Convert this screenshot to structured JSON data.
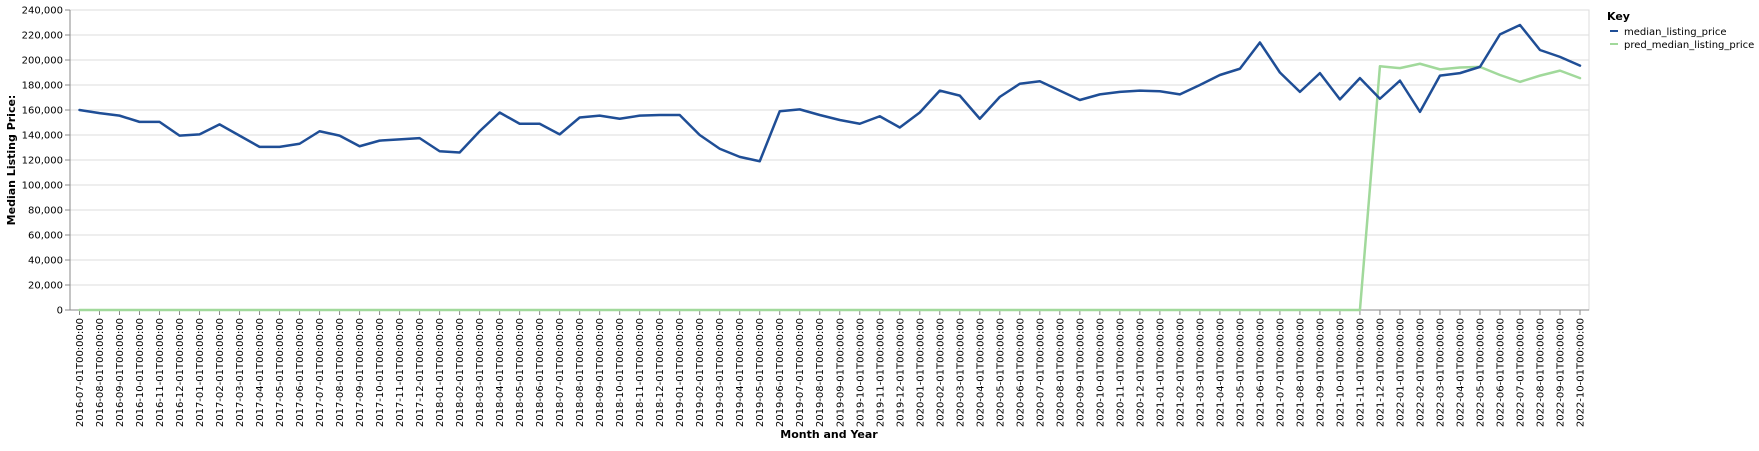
{
  "chart_data": {
    "type": "line",
    "xlabel": "Month and Year",
    "ylabel": "Median Listing Price:",
    "ylim": [
      0,
      240000
    ],
    "yticks": [
      0,
      20000,
      40000,
      60000,
      80000,
      100000,
      120000,
      140000,
      160000,
      180000,
      200000,
      220000,
      240000
    ],
    "ytick_labels": [
      "0",
      "20,000",
      "40,000",
      "60,000",
      "80,000",
      "100,000",
      "120,000",
      "140,000",
      "160,000",
      "180,000",
      "200,000",
      "220,000",
      "240,000"
    ],
    "grid": true,
    "legend": {
      "title": "Key",
      "placement": "top-right"
    },
    "x": [
      "2016-07-01T00:00:00",
      "2016-08-01T00:00:00",
      "2016-09-01T00:00:00",
      "2016-10-01T00:00:00",
      "2016-11-01T00:00:00",
      "2016-12-01T00:00:00",
      "2017-01-01T00:00:00",
      "2017-02-01T00:00:00",
      "2017-03-01T00:00:00",
      "2017-04-01T00:00:00",
      "2017-05-01T00:00:00",
      "2017-06-01T00:00:00",
      "2017-07-01T00:00:00",
      "2017-08-01T00:00:00",
      "2017-09-01T00:00:00",
      "2017-10-01T00:00:00",
      "2017-11-01T00:00:00",
      "2017-12-01T00:00:00",
      "2018-01-01T00:00:00",
      "2018-02-01T00:00:00",
      "2018-03-01T00:00:00",
      "2018-04-01T00:00:00",
      "2018-05-01T00:00:00",
      "2018-06-01T00:00:00",
      "2018-07-01T00:00:00",
      "2018-08-01T00:00:00",
      "2018-09-01T00:00:00",
      "2018-10-01T00:00:00",
      "2018-11-01T00:00:00",
      "2018-12-01T00:00:00",
      "2019-01-01T00:00:00",
      "2019-02-01T00:00:00",
      "2019-03-01T00:00:00",
      "2019-04-01T00:00:00",
      "2019-05-01T00:00:00",
      "2019-06-01T00:00:00",
      "2019-07-01T00:00:00",
      "2019-08-01T00:00:00",
      "2019-09-01T00:00:00",
      "2019-10-01T00:00:00",
      "2019-11-01T00:00:00",
      "2019-12-01T00:00:00",
      "2020-01-01T00:00:00",
      "2020-02-01T00:00:00",
      "2020-03-01T00:00:00",
      "2020-04-01T00:00:00",
      "2020-05-01T00:00:00",
      "2020-06-01T00:00:00",
      "2020-07-01T00:00:00",
      "2020-08-01T00:00:00",
      "2020-09-01T00:00:00",
      "2020-10-01T00:00:00",
      "2020-11-01T00:00:00",
      "2020-12-01T00:00:00",
      "2021-01-01T00:00:00",
      "2021-02-01T00:00:00",
      "2021-03-01T00:00:00",
      "2021-04-01T00:00:00",
      "2021-05-01T00:00:00",
      "2021-06-01T00:00:00",
      "2021-07-01T00:00:00",
      "2021-08-01T00:00:00",
      "2021-09-01T00:00:00",
      "2021-10-01T00:00:00",
      "2021-11-01T00:00:00",
      "2021-12-01T00:00:00",
      "2022-01-01T00:00:00",
      "2022-02-01T00:00:00",
      "2022-03-01T00:00:00",
      "2022-04-01T00:00:00",
      "2022-05-01T00:00:00",
      "2022-06-01T00:00:00",
      "2022-07-01T00:00:00",
      "2022-08-01T00:00:00",
      "2022-09-01T00:00:00",
      "2022-10-01T00:00:00"
    ],
    "series": [
      {
        "name": "median_listing_price",
        "color": "#1f4e96",
        "values": [
          160000,
          157500,
          155500,
          150500,
          150500,
          139500,
          140500,
          148500,
          139500,
          130500,
          130500,
          133000,
          143000,
          139500,
          131000,
          135500,
          136500,
          137500,
          127000,
          126000,
          143000,
          158000,
          149000,
          149000,
          140500,
          154000,
          155500,
          153000,
          155500,
          156000,
          156000,
          140000,
          129000,
          122500,
          119000,
          159000,
          160500,
          156000,
          152000,
          149000,
          155000,
          146000,
          158000,
          175500,
          171500,
          153000,
          170500,
          181000,
          183000,
          175500,
          168000,
          172500,
          174500,
          175500,
          175000,
          172500,
          180000,
          188000,
          193000,
          214000,
          190000,
          174500,
          189500,
          168500,
          185500,
          169000,
          183500,
          158500,
          187500,
          189500,
          194500,
          220500,
          228000,
          208000,
          202500,
          195500
        ]
      },
      {
        "name": "pred_median_listing_price",
        "color": "#a1d99b",
        "values": [
          0,
          0,
          0,
          0,
          0,
          0,
          0,
          0,
          0,
          0,
          0,
          0,
          0,
          0,
          0,
          0,
          0,
          0,
          0,
          0,
          0,
          0,
          0,
          0,
          0,
          0,
          0,
          0,
          0,
          0,
          0,
          0,
          0,
          0,
          0,
          0,
          0,
          0,
          0,
          0,
          0,
          0,
          0,
          0,
          0,
          0,
          0,
          0,
          0,
          0,
          0,
          0,
          0,
          0,
          0,
          0,
          0,
          0,
          0,
          0,
          0,
          0,
          0,
          0,
          0,
          195000,
          193500,
          197000,
          192500,
          194000,
          194500,
          188000,
          182500,
          187500,
          191500,
          185500
        ]
      }
    ]
  }
}
